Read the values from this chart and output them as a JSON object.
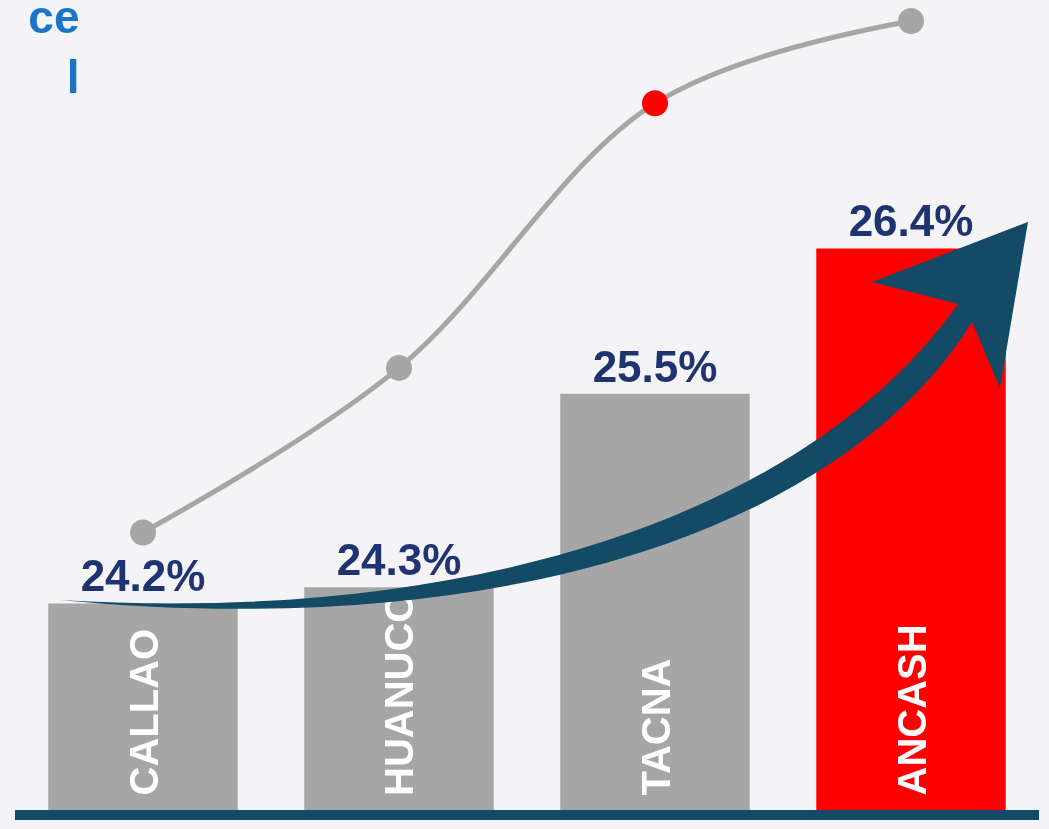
{
  "chart_data": {
    "type": "bar",
    "title": "ce",
    "subtitle": "l",
    "categories": [
      "CALLAO",
      "HUANUCO",
      "TACNA",
      "ANCASH"
    ],
    "values": [
      24.2,
      24.3,
      25.5,
      26.4
    ],
    "value_labels": [
      "24.2%",
      "24.3%",
      "25.5%",
      "26.4%"
    ],
    "colors": [
      "#a6a6a6",
      "#a6a6a6",
      "#a6a6a6",
      "#ff0000"
    ],
    "ylim": [
      22.92,
      27.94
    ],
    "grid": false,
    "legend": false,
    "series": [
      {
        "type": "line",
        "color": "#a6a6a6",
        "colors": [
          "#a6a6a6",
          "#a6a6a6",
          "#ff0000",
          "#a6a6a6"
        ],
        "values": [
          24.64,
          25.66,
          27.3,
          27.81
        ]
      }
    ],
    "marker": "circle"
  }
}
